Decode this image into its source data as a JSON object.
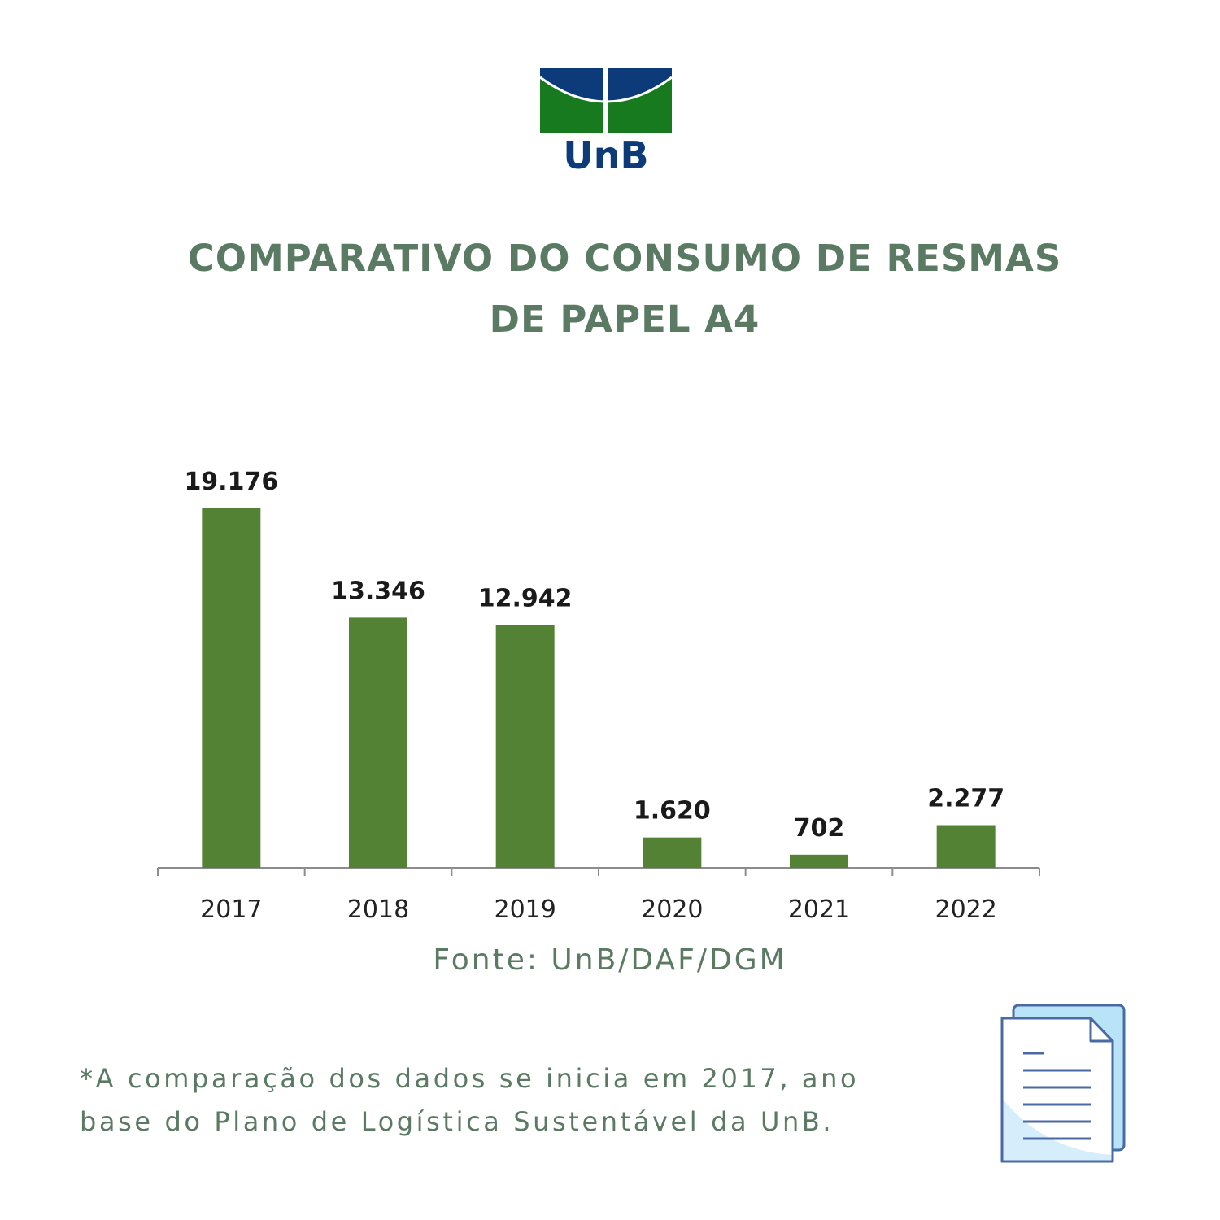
{
  "logo": {
    "text": "UnB",
    "colors": {
      "blue": "#0d3b7a",
      "green": "#177a1e"
    }
  },
  "title": {
    "line1": "COMPARATIVO DO CONSUMO DE RESMAS",
    "line2": "DE PAPEL A4"
  },
  "chart_data": {
    "type": "bar",
    "categories": [
      "2017",
      "2018",
      "2019",
      "2020",
      "2021",
      "2022"
    ],
    "values": [
      19176,
      13346,
      12942,
      1620,
      702,
      2277
    ],
    "value_labels": [
      "19.176",
      "13.346",
      "12.942",
      "1.620",
      "702",
      "2.277"
    ],
    "title": "COMPARATIVO DO CONSUMO DE RESMAS DE PAPEL A4",
    "xlabel": "",
    "ylabel": "",
    "ylim": [
      0,
      20000
    ],
    "grid": false,
    "bar_color": "#548235"
  },
  "source": "Fonte: UnB/DAF/DGM",
  "note": {
    "line1": "*A comparação dos dados se inicia em 2017, ano",
    "line2": "base do Plano de Logística Sustentável da UnB."
  },
  "icons": {
    "document": "document-icon"
  },
  "colors": {
    "accent": "#5b7a63",
    "bar": "#548235"
  }
}
